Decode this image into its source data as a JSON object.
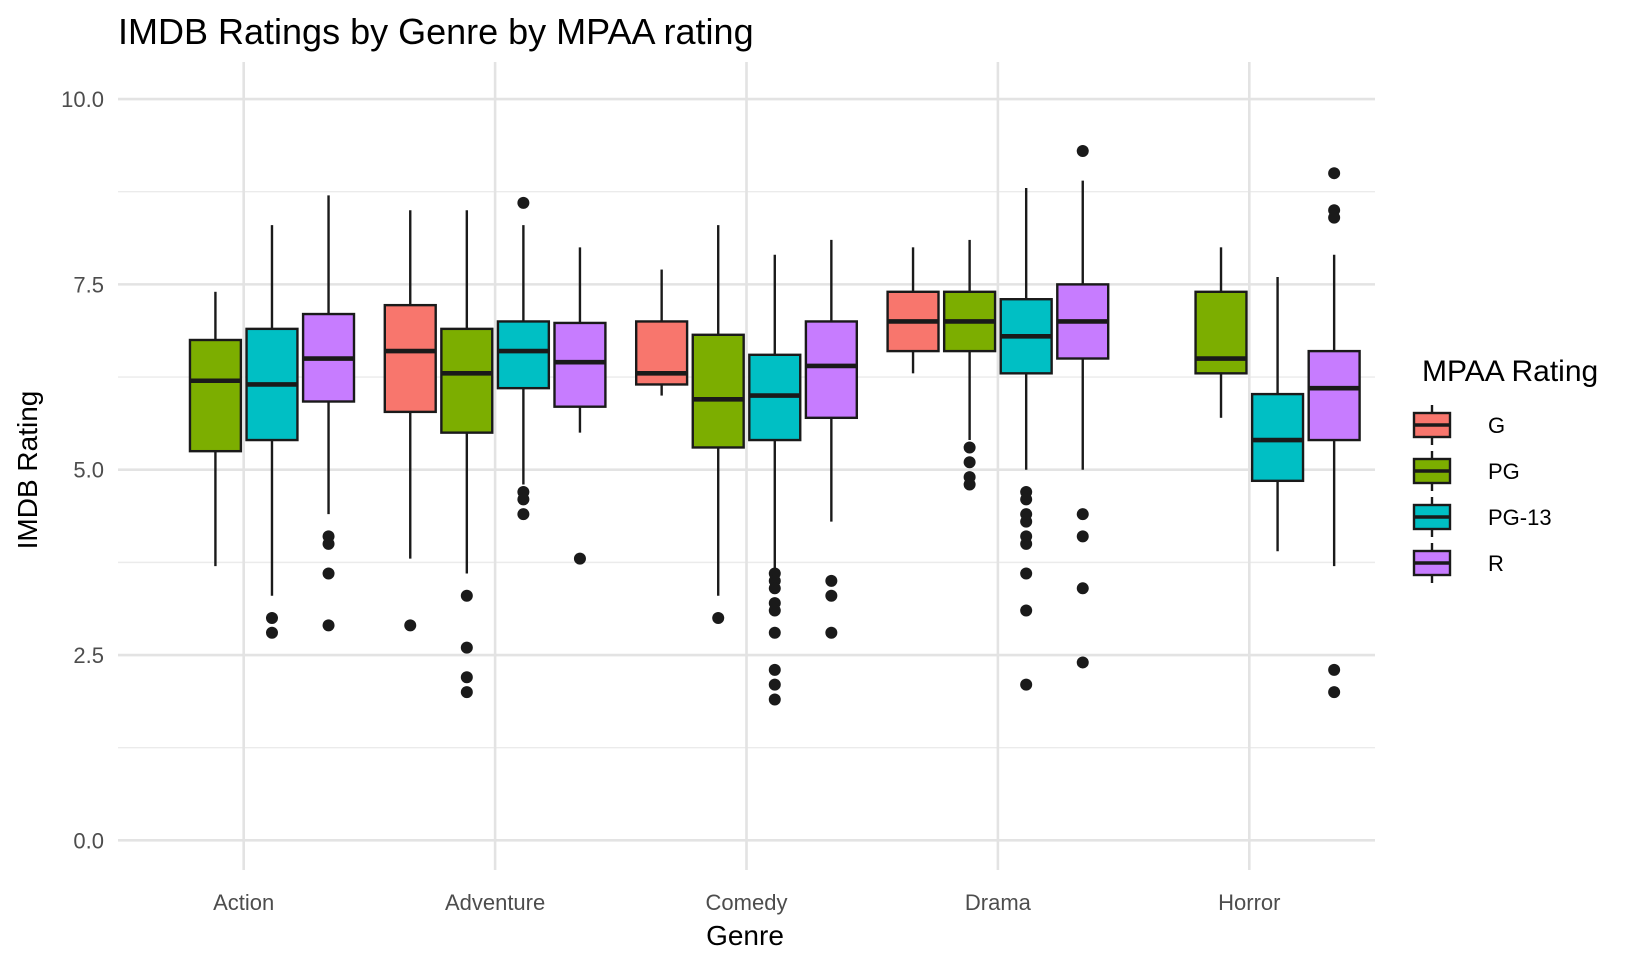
{
  "chart_data": {
    "type": "boxplot",
    "title": "IMDB Ratings by Genre by MPAA rating",
    "xlabel": "Genre",
    "ylabel": "IMDB Rating",
    "ylim": [
      -0.4,
      10.5
    ],
    "yticks": [
      0.0,
      2.5,
      5.0,
      7.5,
      10.0
    ],
    "ytick_labels": [
      "0.0",
      "2.5",
      "5.0",
      "7.5",
      "10.0"
    ],
    "grid": true,
    "legend": {
      "title": "MPAA Rating",
      "position": "right"
    },
    "categories": [
      "Action",
      "Adventure",
      "Comedy",
      "Drama",
      "Horror"
    ],
    "series": [
      {
        "name": "G",
        "color": "#F8766D",
        "boxes": [
          null,
          {
            "whisker_low": 3.8,
            "q1": 5.78,
            "median": 6.6,
            "q3": 7.22,
            "whisker_high": 8.5,
            "outliers": [
              2.9
            ]
          },
          {
            "whisker_low": 6.0,
            "q1": 6.15,
            "median": 6.3,
            "q3": 7.0,
            "whisker_high": 7.7,
            "outliers": []
          },
          {
            "whisker_low": 6.3,
            "q1": 6.6,
            "median": 7.0,
            "q3": 7.4,
            "whisker_high": 8.0,
            "outliers": []
          },
          null
        ]
      },
      {
        "name": "PG",
        "color": "#7CAE00",
        "boxes": [
          {
            "whisker_low": 3.7,
            "q1": 5.25,
            "median": 6.2,
            "q3": 6.75,
            "whisker_high": 7.4,
            "outliers": []
          },
          {
            "whisker_low": 3.6,
            "q1": 5.5,
            "median": 6.3,
            "q3": 6.9,
            "whisker_high": 8.5,
            "outliers": [
              3.3,
              2.6,
              2.2,
              2.0
            ]
          },
          {
            "whisker_low": 3.3,
            "q1": 5.3,
            "median": 5.95,
            "q3": 6.82,
            "whisker_high": 8.3,
            "outliers": [
              3.0
            ]
          },
          {
            "whisker_low": 5.4,
            "q1": 6.6,
            "median": 7.0,
            "q3": 7.4,
            "whisker_high": 8.1,
            "outliers": [
              5.3,
              5.1,
              4.9,
              4.8
            ]
          },
          {
            "whisker_low": 5.7,
            "q1": 6.3,
            "median": 6.5,
            "q3": 7.4,
            "whisker_high": 8.0,
            "outliers": []
          }
        ]
      },
      {
        "name": "PG-13",
        "color": "#00BFC4",
        "boxes": [
          {
            "whisker_low": 3.3,
            "q1": 5.4,
            "median": 6.15,
            "q3": 6.9,
            "whisker_high": 8.3,
            "outliers": [
              3.0,
              2.8
            ]
          },
          {
            "whisker_low": 4.8,
            "q1": 6.1,
            "median": 6.6,
            "q3": 7.0,
            "whisker_high": 8.3,
            "outliers": [
              8.6,
              4.7,
              4.6,
              4.4
            ]
          },
          {
            "whisker_low": 3.6,
            "q1": 5.4,
            "median": 6.0,
            "q3": 6.55,
            "whisker_high": 7.9,
            "outliers": [
              3.6,
              3.5,
              3.4,
              3.2,
              3.1,
              2.8,
              2.3,
              2.1,
              1.9
            ]
          },
          {
            "whisker_low": 5.0,
            "q1": 6.3,
            "median": 6.8,
            "q3": 7.3,
            "whisker_high": 8.8,
            "outliers": [
              4.7,
              4.6,
              4.4,
              4.3,
              4.1,
              4.0,
              3.6,
              3.1,
              2.1
            ]
          },
          {
            "whisker_low": 3.9,
            "q1": 4.85,
            "median": 5.4,
            "q3": 6.02,
            "whisker_high": 7.6,
            "outliers": []
          }
        ]
      },
      {
        "name": "R",
        "color": "#C77CFF",
        "boxes": [
          {
            "whisker_low": 4.4,
            "q1": 5.92,
            "median": 6.5,
            "q3": 7.1,
            "whisker_high": 8.7,
            "outliers": [
              4.1,
              4.0,
              3.6,
              2.9
            ]
          },
          {
            "whisker_low": 5.5,
            "q1": 5.85,
            "median": 6.45,
            "q3": 6.98,
            "whisker_high": 8.0,
            "outliers": [
              3.8
            ]
          },
          {
            "whisker_low": 4.3,
            "q1": 5.7,
            "median": 6.4,
            "q3": 7.0,
            "whisker_high": 8.1,
            "outliers": [
              3.5,
              3.3,
              2.8
            ]
          },
          {
            "whisker_low": 5.0,
            "q1": 6.5,
            "median": 7.0,
            "q3": 7.5,
            "whisker_high": 8.9,
            "outliers": [
              9.3,
              4.4,
              4.1,
              3.4,
              2.4
            ]
          },
          {
            "whisker_low": 3.7,
            "q1": 5.4,
            "median": 6.1,
            "q3": 6.6,
            "whisker_high": 7.9,
            "outliers": [
              9.0,
              8.5,
              8.4,
              2.3,
              2.0
            ]
          }
        ]
      }
    ]
  }
}
